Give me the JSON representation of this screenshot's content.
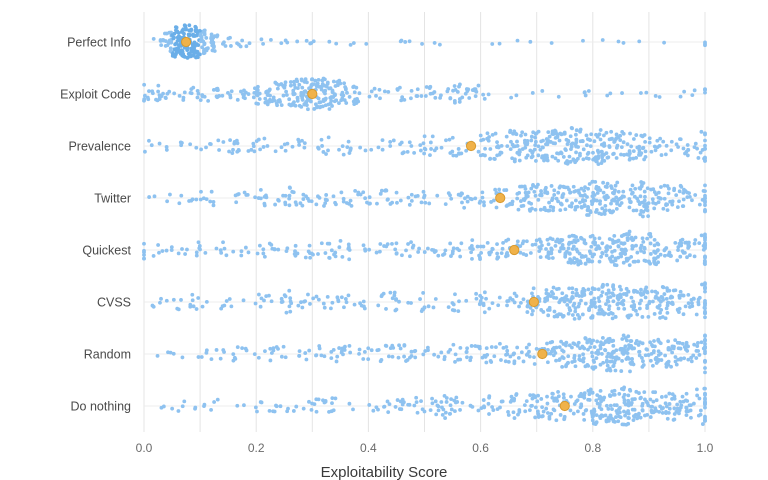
{
  "chart_data": {
    "type": "scatter",
    "xlabel": "Exploitability Score",
    "ylabel": "",
    "xlim": [
      0,
      1
    ],
    "xticks": [
      "0.0",
      "0.2",
      "0.4",
      "0.6",
      "0.8",
      "1.0"
    ],
    "xtick_values": [
      0,
      0.2,
      0.4,
      0.6,
      0.8,
      1.0
    ],
    "grid": true,
    "colors": {
      "points": "#8ec2f0",
      "points_dense": "#6aaee8",
      "mean": "#f0b24a",
      "mean_stroke": "#d99a2e"
    },
    "series": [
      {
        "name": "Perfect Info",
        "mean": 0.075,
        "mode": 0.075,
        "spread": "tight"
      },
      {
        "name": "Exploit Code",
        "mean": 0.3,
        "mode": 0.3,
        "spread": "medium"
      },
      {
        "name": "Prevalence",
        "mean": 0.583,
        "mode": 0.75,
        "spread": "wide"
      },
      {
        "name": "Twitter",
        "mean": 0.635,
        "mode": 0.8,
        "spread": "wide"
      },
      {
        "name": "Quickest",
        "mean": 0.66,
        "mode": 0.82,
        "spread": "wide"
      },
      {
        "name": "CVSS",
        "mean": 0.695,
        "mode": 0.83,
        "spread": "wide"
      },
      {
        "name": "Random",
        "mean": 0.71,
        "mode": 0.82,
        "spread": "wide"
      },
      {
        "name": "Do nothing",
        "mean": 0.75,
        "mode": 0.85,
        "spread": "wide"
      }
    ]
  }
}
